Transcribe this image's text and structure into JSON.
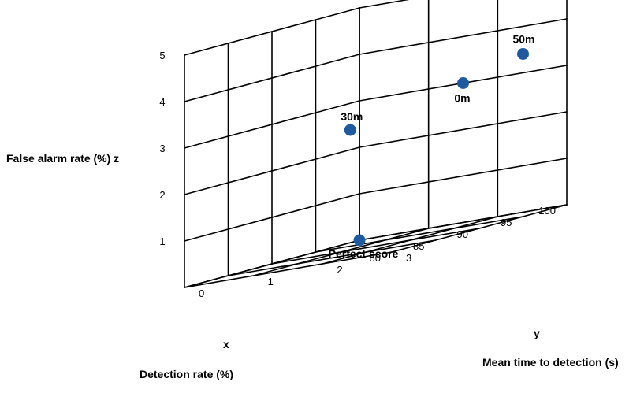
{
  "chart_data": {
    "type": "scatter",
    "title": "",
    "axes": {
      "x": {
        "letter": "x",
        "label": "Detection rate (%)",
        "ticks": [
          "100",
          "95",
          "90",
          "85",
          "80"
        ],
        "range": [
          80,
          100
        ]
      },
      "y": {
        "letter": "y",
        "label": "Mean time to detection (s)",
        "ticks": [
          "0",
          "1",
          "2",
          "3"
        ],
        "range": [
          0,
          3
        ]
      },
      "z": {
        "label": "False alarm rate (%) z",
        "ticks": [
          "1",
          "2",
          "3",
          "4",
          "5"
        ],
        "range": [
          0,
          5
        ]
      }
    },
    "grid": true,
    "points": [
      {
        "label": "Perfect score",
        "x": 100,
        "y": 0,
        "z": 0
      },
      {
        "label": "0m",
        "x": 100,
        "y": 1.5,
        "z": 3.0
      },
      {
        "label": "30m",
        "x": 95,
        "y": 0.5,
        "z": 2.5
      },
      {
        "label": "50m",
        "x": 95,
        "y": 3.0,
        "z": 3.5
      }
    ],
    "marker_color": "#1f5aa0"
  }
}
